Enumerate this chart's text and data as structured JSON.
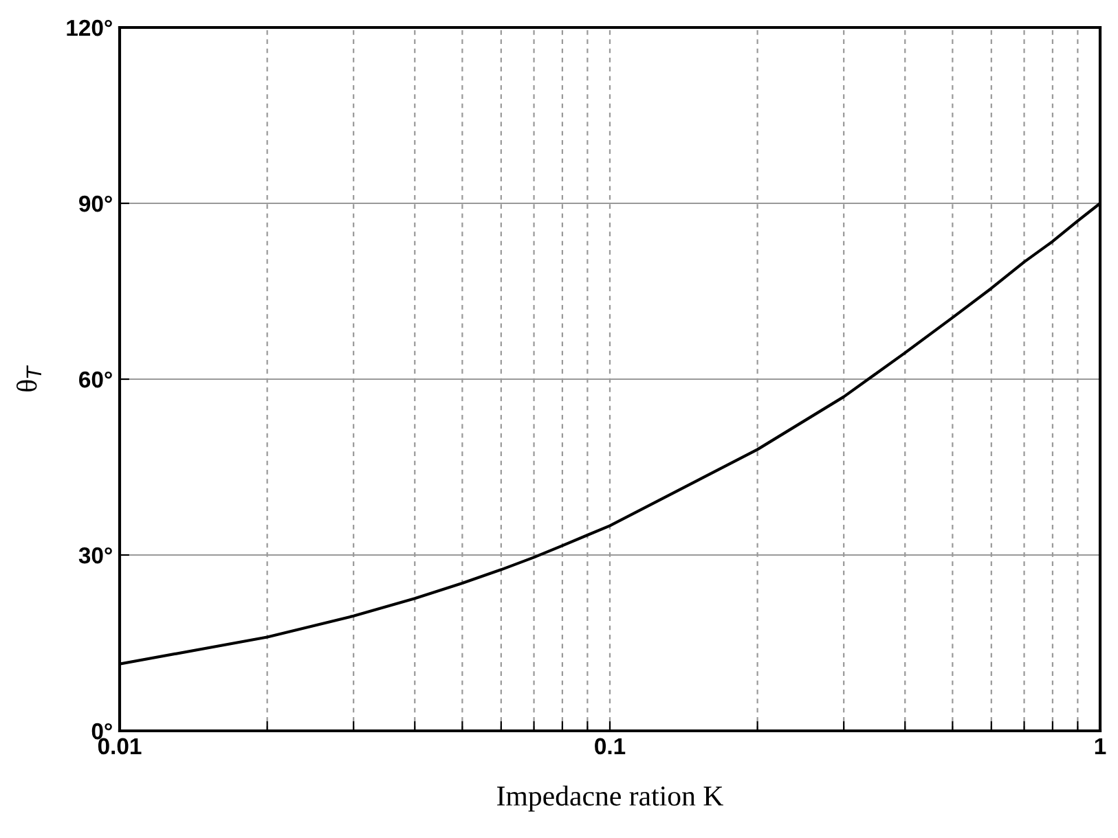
{
  "chart_data": {
    "type": "line",
    "xlabel": "Impedacne ration K",
    "ylabel": "θ$_{T}$",
    "log": "x",
    "grid": true,
    "line_style": "solid",
    "marker": "none",
    "x": [
      0.01,
      0.02,
      0.03,
      0.04,
      0.05,
      0.06,
      0.07,
      0.08,
      0.09,
      0.1,
      0.2,
      0.3,
      0.4,
      0.5,
      0.6,
      0.7,
      0.8,
      0.9,
      1
    ],
    "series": [
      {
        "color": "#000000",
        "values": [
          11.4,
          16,
          19.6,
          22.6,
          25.2,
          27.5,
          29.6,
          31.6,
          33.4,
          35,
          48,
          57,
          64.5,
          70.5,
          75.5,
          80,
          83.5,
          87,
          90
        ]
      }
    ],
    "xlim": [
      0.01,
      1
    ],
    "xticks": [
      0.01,
      {
        "value": 0.02,
        "label": null
      },
      {
        "value": 0.03,
        "label": null
      },
      {
        "value": 0.04,
        "label": null
      },
      {
        "value": 0.05,
        "label": null
      },
      {
        "value": 0.06,
        "label": null
      },
      {
        "value": 0.07,
        "label": null
      },
      {
        "value": 0.08,
        "label": null
      },
      {
        "value": 0.09,
        "label": null
      },
      0.1,
      {
        "value": 0.2,
        "label": null
      },
      {
        "value": 0.3,
        "label": null
      },
      {
        "value": 0.4,
        "label": null
      },
      {
        "value": 0.5,
        "label": null
      },
      {
        "value": 0.6,
        "label": null
      },
      {
        "value": 0.7,
        "label": null
      },
      {
        "value": 0.8,
        "label": null
      },
      {
        "value": 0.9,
        "label": null
      },
      1
    ],
    "ylim": [
      0,
      120
    ],
    "yticks": [
      {
        "value": 0,
        "label": "0°"
      },
      {
        "value": 30,
        "label": "30°"
      },
      {
        "value": 60,
        "label": "60°"
      },
      {
        "value": 90,
        "label": "90°"
      },
      {
        "value": 120,
        "label": "120°"
      }
    ]
  }
}
